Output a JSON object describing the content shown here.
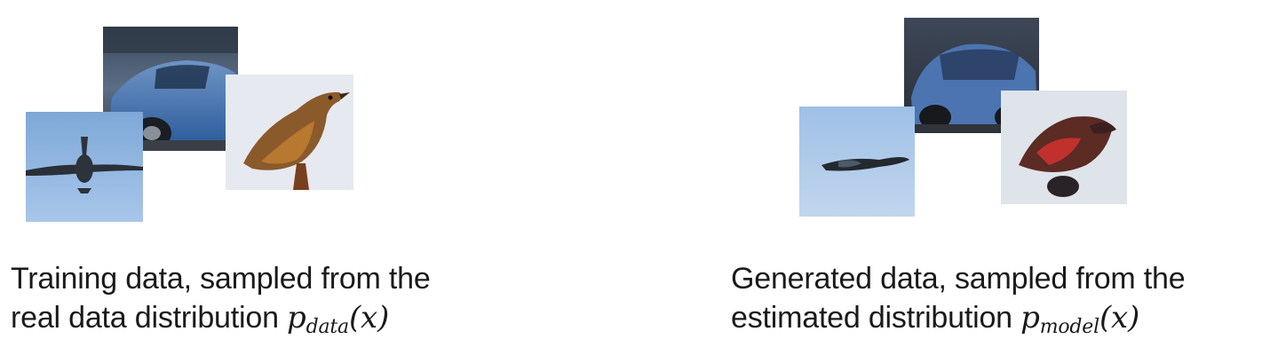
{
  "training": {
    "caption_line1": "Training data, sampled from the",
    "caption_line2": "real data distribution ",
    "math_base": "p",
    "math_sub": "data",
    "math_arg": "(x)",
    "images": [
      "car",
      "airplane",
      "bird"
    ]
  },
  "generated": {
    "caption_line1": "Generated data, sampled from the",
    "caption_line2": "estimated distribution ",
    "math_base": "p",
    "math_sub": "model",
    "math_arg": "(x)",
    "images": [
      "car",
      "airplane",
      "bird"
    ]
  }
}
